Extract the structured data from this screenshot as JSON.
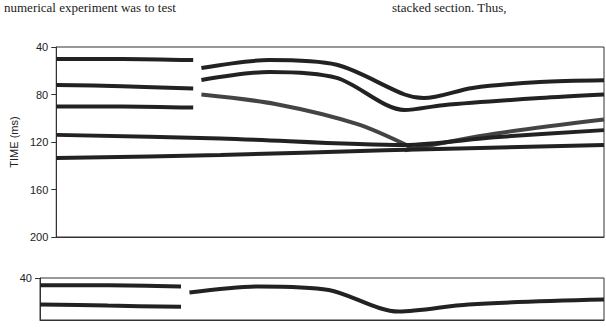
{
  "text": {
    "left": "numerical experiment was to test",
    "right": "stacked section. Thus,"
  },
  "chart_data": [
    {
      "type": "line",
      "y_label": "TIME (ms)",
      "xlim": [
        0,
        100
      ],
      "ylim": [
        40,
        200
      ],
      "yticks": [
        40,
        80,
        120,
        160,
        200
      ],
      "tick_labels": "y",
      "grid": false,
      "series": [
        {
          "color": "#222222",
          "line_style": "solid",
          "x": [
            0,
            12,
            25
          ],
          "values": [
            50,
            50,
            51
          ]
        },
        {
          "color": "#222222",
          "line_style": "solid",
          "x": [
            0,
            12,
            25
          ],
          "values": [
            72,
            73,
            75
          ]
        },
        {
          "color": "#222222",
          "line_style": "solid",
          "x": [
            0,
            12,
            25
          ],
          "values": [
            90,
            90,
            91
          ]
        },
        {
          "color": "#222222",
          "line_style": "solid",
          "x": [
            26.5,
            38.9,
            51.2,
            63.6,
            67.1,
            76,
            88.3,
            100
          ],
          "values": [
            57.7,
            51,
            55,
            80,
            83,
            74.5,
            69.5,
            68
          ]
        },
        {
          "color": "#222222",
          "line_style": "solid",
          "x": [
            26.5,
            38.9,
            51.2,
            63.6,
            70.6,
            88.3,
            100
          ],
          "values": [
            67.8,
            61,
            66,
            93,
            89,
            83,
            80
          ]
        },
        {
          "color": "#444444",
          "line_style": "solid",
          "x": [
            26.5,
            40,
            55,
            65
          ],
          "values": [
            80,
            88,
            105,
            125
          ]
        },
        {
          "color": "#444444",
          "line_style": "solid",
          "x": [
            63.6,
            80,
            100
          ],
          "values": [
            127,
            113,
            101
          ]
        },
        {
          "color": "#222222",
          "line_style": "solid",
          "x": [
            0,
            30,
            63.6,
            80,
            100
          ],
          "values": [
            114,
            117,
            122.5,
            116,
            110
          ]
        },
        {
          "color": "#222222",
          "line_style": "solid",
          "x": [
            0,
            30,
            60,
            100
          ],
          "values": [
            133.5,
            131,
            127,
            122.5
          ]
        }
      ]
    },
    {
      "type": "line",
      "xlim": [
        0,
        100
      ],
      "ylim": [
        40,
        75
      ],
      "yticks": [
        40
      ],
      "tick_labels": "y",
      "grid": false,
      "series": [
        {
          "color": "#222222",
          "line_style": "solid",
          "x": [
            0,
            12,
            25
          ],
          "values": [
            46,
            46,
            47
          ]
        },
        {
          "color": "#222222",
          "line_style": "solid",
          "x": [
            0,
            12,
            25
          ],
          "values": [
            62,
            63,
            64
          ]
        },
        {
          "color": "#222222",
          "line_style": "solid",
          "x": [
            26.5,
            38.9,
            51.2,
            63.6,
            76,
            100
          ],
          "values": [
            52,
            47,
            50,
            68,
            62,
            58
          ]
        }
      ]
    }
  ]
}
